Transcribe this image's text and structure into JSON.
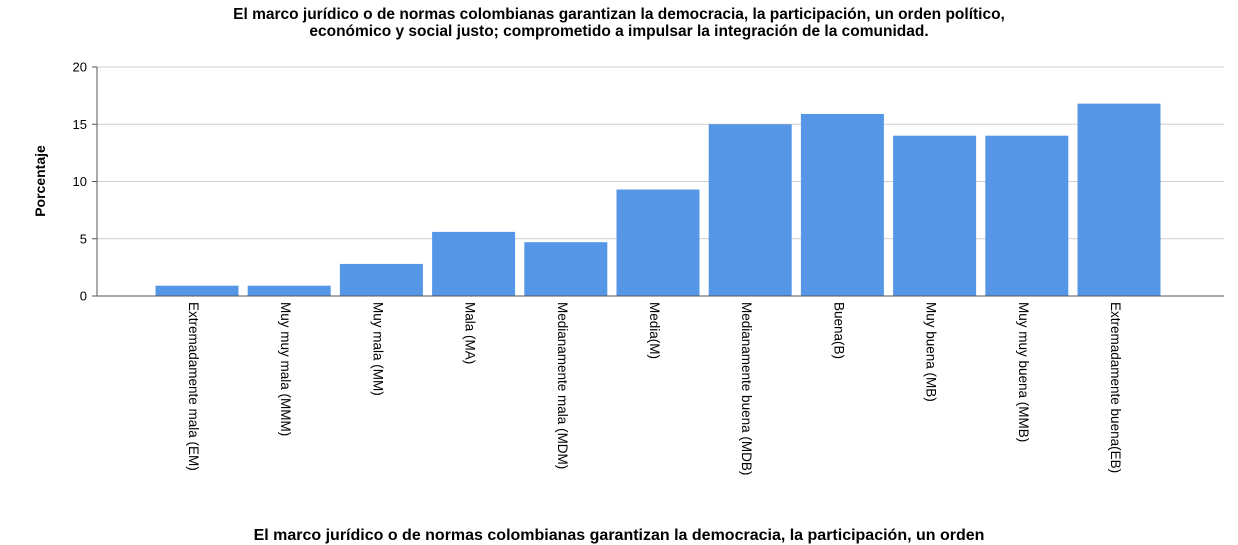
{
  "chart_data": {
    "type": "bar",
    "title": "El marco jurídico o de normas colombianas  garantizan la democracia, la participación, un orden político,\neconómico y social justo; comprometido a impulsar la integración de la comunidad.",
    "xlabel": "El marco jurídico o de normas colombianas  garantizan la democracia, la participación, un orden",
    "ylabel": "Porcentaje",
    "ylim": [
      0,
      20
    ],
    "yticks": [
      "0",
      "5",
      "10",
      "15",
      "20"
    ],
    "grid": true,
    "categories": [
      "Extremadamente mala (EM)",
      "Muy muy mala (MMM)",
      "Muy mala (MM)",
      "Mala (MA)",
      "Medianamente mala (MDM)",
      "Media(M)",
      "Medianamente buena (MDB)",
      "Buena(B)",
      "Muy buena (MB)",
      "Muy muy buena (MMB)",
      "Extremadamente buena(EB)"
    ],
    "values": [
      0.9,
      0.9,
      2.8,
      5.6,
      4.7,
      9.3,
      15.0,
      15.9,
      14.0,
      14.0,
      16.8
    ],
    "bar_color": "#5596e6"
  }
}
